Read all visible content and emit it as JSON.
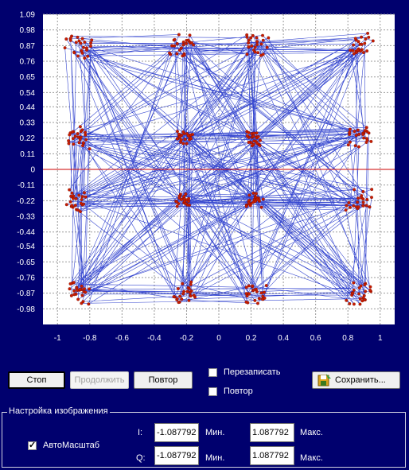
{
  "chart_data": {
    "type": "scatter",
    "title": "",
    "xlabel": "",
    "ylabel": "",
    "xlim": [
      -1.09,
      1.09
    ],
    "ylim": [
      -1.09,
      1.09
    ],
    "x_ticks": [
      "-1",
      "-0.8",
      "-0.6",
      "-0.4",
      "-0.2",
      "0",
      "0.2",
      "0.4",
      "0.6",
      "0.8",
      "1"
    ],
    "y_ticks": [
      "1.09",
      "0.98",
      "0.87",
      "0.76",
      "0.65",
      "0.54",
      "0.44",
      "0.33",
      "0.22",
      "0.11",
      "0",
      "-0.11",
      "-0.22",
      "-0.33",
      "-0.44",
      "-0.54",
      "-0.65",
      "-0.76",
      "-0.87",
      "-0.98"
    ],
    "grid": true,
    "points_color": "#c81e00",
    "trace_color": "#1428c8",
    "zero_line_color": "#cc0000",
    "constellation": {
      "levels": [
        -0.87,
        -0.22,
        0.22,
        0.87
      ],
      "outer_levels": [
        -0.87,
        0.87
      ],
      "inner_levels": [
        -0.22,
        0.22
      ],
      "outer_spread": 0.08,
      "inner_spread": 0.05,
      "points_per_cluster": 24
    }
  },
  "buttons": {
    "stop": "Стоп",
    "continue": "Продолжить",
    "repeat": "Повтор",
    "save": "Сохранить..."
  },
  "checkboxes": {
    "overwrite": {
      "label": "Перезаписать",
      "checked": false
    },
    "repeat": {
      "label": "Повтор",
      "checked": false
    },
    "autoscale": {
      "label": "АвтоМасштаб",
      "checked": true
    }
  },
  "settings": {
    "title": "Настройка изображения",
    "i_label": "I:",
    "q_label": "Q:",
    "min_label": "Мин.",
    "max_label": "Макс.",
    "i_min": "-1.087792",
    "i_max": "1.087792",
    "q_min": "-1.087792",
    "q_max": "1.087792"
  },
  "icons": {
    "save": "floppy-disk-icon"
  }
}
